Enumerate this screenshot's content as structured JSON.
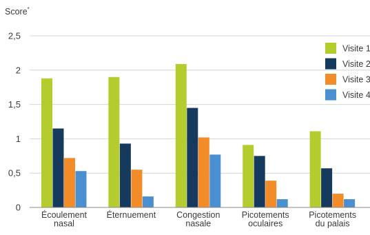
{
  "chart_data": {
    "type": "bar",
    "ylabel": "Score",
    "ylabel_marker": "*",
    "ylim": [
      0,
      2.5
    ],
    "yticks": [
      {
        "value": 0,
        "label": "0"
      },
      {
        "value": 0.5,
        "label": "0,5"
      },
      {
        "value": 1,
        "label": "1"
      },
      {
        "value": 1.5,
        "label": "1,5"
      },
      {
        "value": 2,
        "label": "2"
      },
      {
        "value": 2.5,
        "label": "2,5"
      }
    ],
    "grid": true,
    "legend_position": "top-right",
    "categories": [
      [
        "Écoulement",
        "nasal"
      ],
      [
        "Éternuement"
      ],
      [
        "Congestion",
        "nasale"
      ],
      [
        "Picotements",
        "oculaires"
      ],
      [
        "Picotements",
        "du palais"
      ]
    ],
    "series": [
      {
        "name": "Visite 1",
        "color": "#b5cc2e",
        "values": [
          1.88,
          1.9,
          2.09,
          0.91,
          1.11
        ]
      },
      {
        "name": "Visite 2",
        "color": "#163a5e",
        "values": [
          1.15,
          0.93,
          1.45,
          0.75,
          0.57
        ]
      },
      {
        "name": "Visite 3",
        "color": "#f28c28",
        "values": [
          0.72,
          0.55,
          1.02,
          0.39,
          0.2
        ]
      },
      {
        "name": "Visite 4",
        "color": "#4a8fd0",
        "values": [
          0.53,
          0.16,
          0.77,
          0.12,
          0.12
        ]
      }
    ]
  }
}
